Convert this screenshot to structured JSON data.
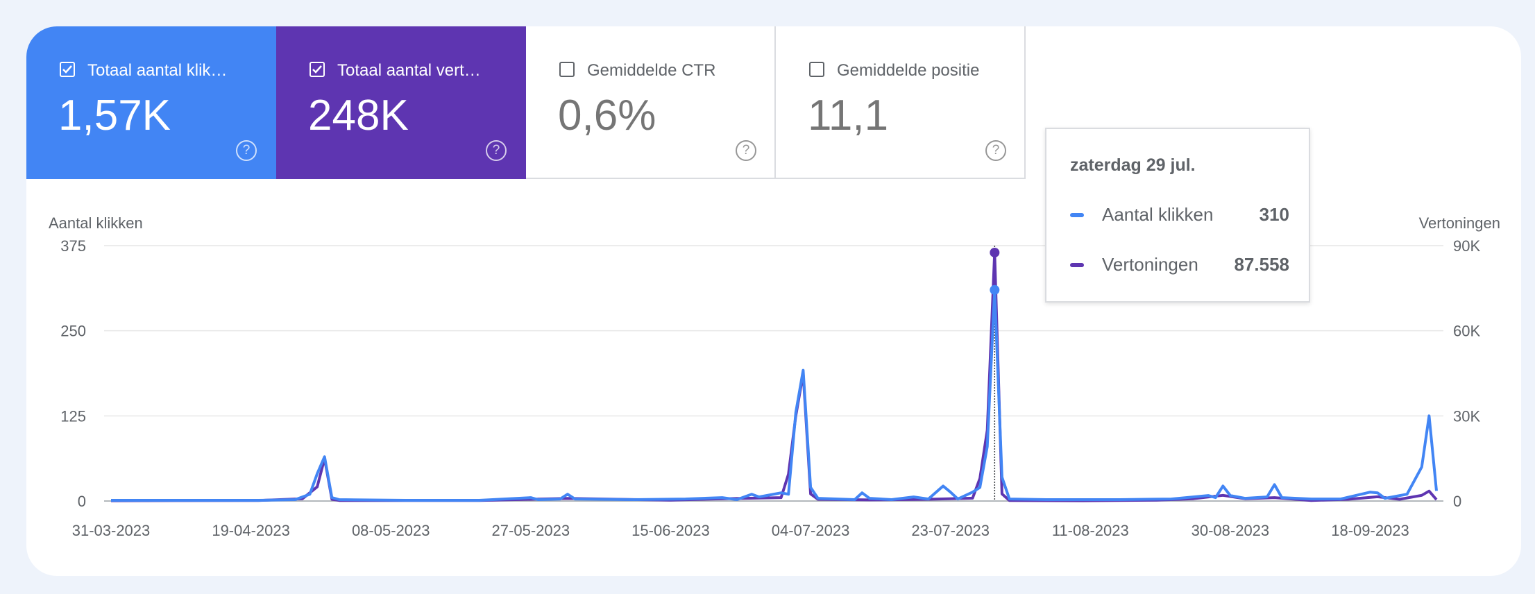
{
  "metrics": [
    {
      "label": "Totaal aantal klik…",
      "value": "1,57K",
      "checked": true,
      "color": "#4285f4"
    },
    {
      "label": "Totaal aantal vert…",
      "value": "248K",
      "checked": true,
      "color": "#5e35b1"
    },
    {
      "label": "Gemiddelde CTR",
      "value": "0,6%",
      "checked": false
    },
    {
      "label": "Gemiddelde positie",
      "value": "11,1",
      "checked": false
    }
  ],
  "tooltip": {
    "date": "zaterdag 29 jul.",
    "rows": [
      {
        "name": "Aantal klikken",
        "value": "310",
        "color": "#4285f4"
      },
      {
        "name": "Vertoningen",
        "value": "87.558",
        "color": "#5e35b1"
      }
    ]
  },
  "chart_data": {
    "type": "line",
    "y_left_label": "Aantal klikken",
    "y_right_label": "Vertoningen",
    "y_left_ticks": [
      "375",
      "250",
      "125",
      "0"
    ],
    "y_right_ticks": [
      "90K",
      "60K",
      "30K",
      "0"
    ],
    "ylim_left": [
      0,
      375
    ],
    "ylim_right": [
      0,
      90000
    ],
    "x_ticks": [
      "31-03-2023",
      "19-04-2023",
      "08-05-2023",
      "27-05-2023",
      "15-06-2023",
      "04-07-2023",
      "23-07-2023",
      "11-08-2023",
      "30-08-2023",
      "18-09-2023"
    ],
    "x_start": "2023-03-31",
    "grid": true,
    "series": [
      {
        "name": "Aantal klikken",
        "axis": "left",
        "color": "#4285f4",
        "points": [
          [
            "2023-03-31",
            1
          ],
          [
            "2023-04-05",
            1
          ],
          [
            "2023-04-10",
            1
          ],
          [
            "2023-04-15",
            1
          ],
          [
            "2023-04-20",
            1
          ],
          [
            "2023-04-25",
            2
          ],
          [
            "2023-04-27",
            10
          ],
          [
            "2023-04-28",
            40
          ],
          [
            "2023-04-29",
            65
          ],
          [
            "2023-04-30",
            5
          ],
          [
            "2023-05-01",
            2
          ],
          [
            "2023-05-10",
            1
          ],
          [
            "2023-05-20",
            1
          ],
          [
            "2023-05-27",
            5
          ],
          [
            "2023-05-28",
            2
          ],
          [
            "2023-05-31",
            3
          ],
          [
            "2023-06-01",
            10
          ],
          [
            "2023-06-02",
            3
          ],
          [
            "2023-06-10",
            2
          ],
          [
            "2023-06-17",
            3
          ],
          [
            "2023-06-22",
            5
          ],
          [
            "2023-06-24",
            2
          ],
          [
            "2023-06-26",
            10
          ],
          [
            "2023-06-27",
            6
          ],
          [
            "2023-06-30",
            12
          ],
          [
            "2023-07-01",
            10
          ],
          [
            "2023-07-02",
            130
          ],
          [
            "2023-07-03",
            192
          ],
          [
            "2023-07-04",
            20
          ],
          [
            "2023-07-05",
            4
          ],
          [
            "2023-07-10",
            2
          ],
          [
            "2023-07-11",
            12
          ],
          [
            "2023-07-12",
            4
          ],
          [
            "2023-07-15",
            2
          ],
          [
            "2023-07-18",
            6
          ],
          [
            "2023-07-20",
            3
          ],
          [
            "2023-07-22",
            22
          ],
          [
            "2023-07-23",
            13
          ],
          [
            "2023-07-24",
            3
          ],
          [
            "2023-07-26",
            13
          ],
          [
            "2023-07-27",
            20
          ],
          [
            "2023-07-28",
            80
          ],
          [
            "2023-07-29",
            310
          ],
          [
            "2023-07-30",
            35
          ],
          [
            "2023-07-31",
            3
          ],
          [
            "2023-08-05",
            2
          ],
          [
            "2023-08-15",
            2
          ],
          [
            "2023-08-22",
            3
          ],
          [
            "2023-08-27",
            8
          ],
          [
            "2023-08-28",
            5
          ],
          [
            "2023-08-29",
            22
          ],
          [
            "2023-08-30",
            8
          ],
          [
            "2023-09-01",
            4
          ],
          [
            "2023-09-04",
            6
          ],
          [
            "2023-09-05",
            24
          ],
          [
            "2023-09-06",
            5
          ],
          [
            "2023-09-10",
            3
          ],
          [
            "2023-09-14",
            3
          ],
          [
            "2023-09-18",
            13
          ],
          [
            "2023-09-19",
            12
          ],
          [
            "2023-09-20",
            4
          ],
          [
            "2023-09-23",
            10
          ],
          [
            "2023-09-25",
            50
          ],
          [
            "2023-09-26",
            125
          ],
          [
            "2023-09-27",
            15
          ]
        ]
      },
      {
        "name": "Vertoningen",
        "axis": "right",
        "color": "#5e35b1",
        "points": [
          [
            "2023-03-31",
            100
          ],
          [
            "2023-04-10",
            150
          ],
          [
            "2023-04-20",
            200
          ],
          [
            "2023-04-26",
            800
          ],
          [
            "2023-04-28",
            5000
          ],
          [
            "2023-04-29",
            15000
          ],
          [
            "2023-04-30",
            600
          ],
          [
            "2023-05-01",
            200
          ],
          [
            "2023-05-20",
            200
          ],
          [
            "2023-05-27",
            600
          ],
          [
            "2023-06-01",
            900
          ],
          [
            "2023-06-15",
            300
          ],
          [
            "2023-06-22",
            800
          ],
          [
            "2023-06-30",
            1200
          ],
          [
            "2023-07-01",
            9500
          ],
          [
            "2023-07-02",
            30000
          ],
          [
            "2023-07-03",
            45000
          ],
          [
            "2023-07-04",
            2500
          ],
          [
            "2023-07-05",
            600
          ],
          [
            "2023-07-12",
            400
          ],
          [
            "2023-07-20",
            600
          ],
          [
            "2023-07-26",
            1000
          ],
          [
            "2023-07-27",
            8000
          ],
          [
            "2023-07-28",
            25000
          ],
          [
            "2023-07-29",
            87558
          ],
          [
            "2023-07-30",
            2500
          ],
          [
            "2023-07-31",
            200
          ],
          [
            "2023-08-10",
            100
          ],
          [
            "2023-08-20",
            300
          ],
          [
            "2023-08-25",
            800
          ],
          [
            "2023-08-29",
            2000
          ],
          [
            "2023-09-01",
            800
          ],
          [
            "2023-09-05",
            1200
          ],
          [
            "2023-09-10",
            200
          ],
          [
            "2023-09-15",
            600
          ],
          [
            "2023-09-19",
            1500
          ],
          [
            "2023-09-22",
            600
          ],
          [
            "2023-09-25",
            2000
          ],
          [
            "2023-09-26",
            3500
          ],
          [
            "2023-09-27",
            500
          ]
        ]
      }
    ],
    "hover_date": "2023-07-29"
  }
}
